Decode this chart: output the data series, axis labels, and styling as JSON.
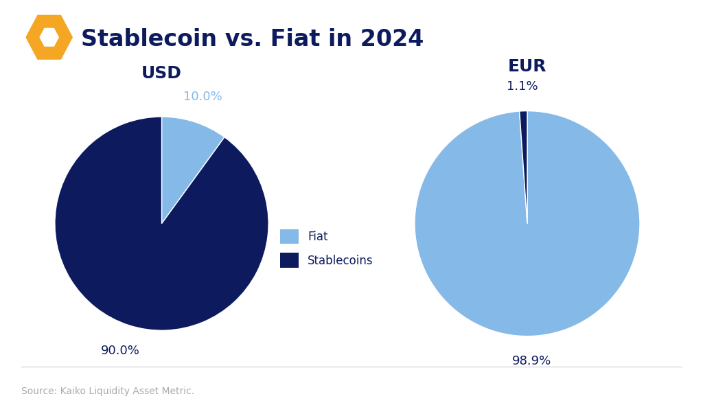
{
  "title": "Stablecoin vs. Fiat in 2024",
  "background_color": "#ffffff",
  "title_color": "#0d1b5e",
  "title_fontsize": 24,
  "usd_label": "USD",
  "eur_label": "EUR",
  "usd_values": [
    10.0,
    90.0
  ],
  "eur_values": [
    98.9,
    1.1
  ],
  "fiat_color": "#85b9e8",
  "stablecoin_color": "#0d1b5e",
  "legend_labels": [
    "Fiat",
    "Stablecoins"
  ],
  "usd_pct_fiat": "10.0%",
  "usd_pct_stab": "90.0%",
  "eur_pct_fiat": "98.9%",
  "eur_pct_stab": "1.1%",
  "source_text": "Source: Kaiko Liquidity Asset Metric.",
  "source_color": "#aaaaaa",
  "source_fontsize": 10,
  "pct_fontsize": 13,
  "subtitle_fontsize": 18,
  "separator_color": "#cccccc",
  "logo_outer_color": "#f5a623",
  "logo_inner_color": "#e07b00"
}
